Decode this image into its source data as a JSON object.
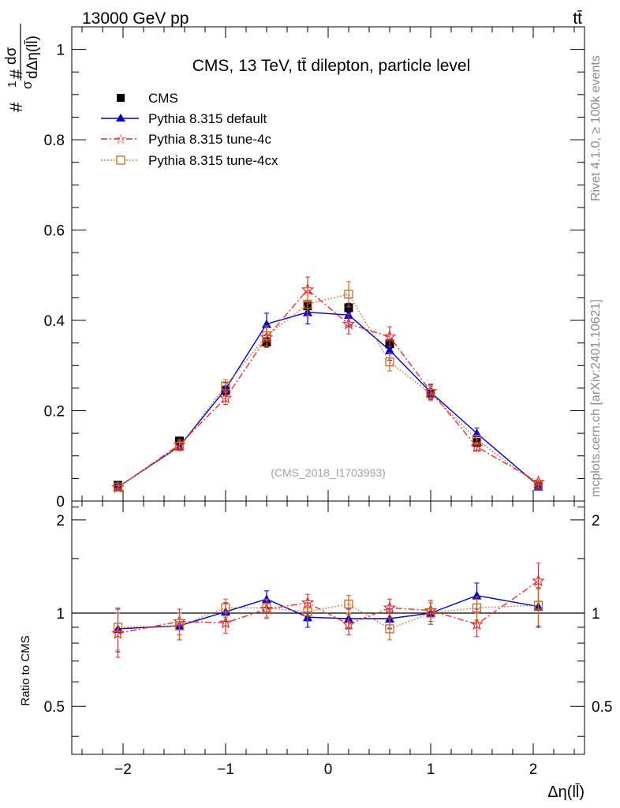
{
  "header": {
    "left": "13000 GeV pp",
    "right": "tt̄"
  },
  "side": {
    "rivet": "Rivet 4.1.0, ≥ 100k events",
    "mcplots": "mcplots.cern.ch [arXiv:2401.10621]"
  },
  "chart_data": [
    {
      "type": "line",
      "panel": "main",
      "title": "CMS, 13 TeV, tt̄ dilepton, particle level",
      "watermark": "(CMS_2018_I1703993)",
      "ylabel_parts": {
        "hash1": "#",
        "one": "1",
        "sigma": "σ",
        "hash2": "#",
        "num": "dσ",
        "den": "dΔη(ll̄)"
      },
      "xlabel": "Δη(ll̄)",
      "xlim": [
        -2.5,
        2.5
      ],
      "ylim": [
        0,
        1.05
      ],
      "yticks": [
        0,
        0.2,
        0.4,
        0.6,
        0.8,
        1
      ],
      "ytick_labels": [
        "0",
        "0.2",
        "0.4",
        "0.6",
        "0.8",
        "1"
      ],
      "x": [
        -2.05,
        -1.45,
        -1.0,
        -0.6,
        -0.2,
        0.2,
        0.6,
        1.0,
        1.45,
        2.05
      ],
      "series": [
        {
          "name": "CMS",
          "style": "data",
          "color": "#000000",
          "values": [
            0.035,
            0.133,
            0.245,
            0.352,
            0.432,
            0.428,
            0.348,
            0.238,
            0.13,
            0.033
          ],
          "errors": [
            0.003,
            0.006,
            0.01,
            0.01,
            0.012,
            0.01,
            0.01,
            0.01,
            0.006,
            0.003
          ]
        },
        {
          "name": "Pythia 8.315 default",
          "style": "triangle",
          "color": "#0000cc",
          "values": [
            0.031,
            0.121,
            0.248,
            0.392,
            0.418,
            0.412,
            0.334,
            0.241,
            0.15,
            0.034
          ],
          "errors": [
            0.004,
            0.01,
            0.014,
            0.024,
            0.026,
            0.024,
            0.022,
            0.016,
            0.012,
            0.005
          ]
        },
        {
          "name": "Pythia 8.315 tune-4c",
          "style": "star",
          "color": "#dd3333",
          "values": [
            0.03,
            0.125,
            0.228,
            0.362,
            0.468,
            0.392,
            0.364,
            0.243,
            0.12,
            0.042
          ],
          "errors": [
            0.004,
            0.01,
            0.014,
            0.022,
            0.028,
            0.022,
            0.022,
            0.016,
            0.01,
            0.005
          ]
        },
        {
          "name": "Pythia 8.315 tune-4cx",
          "style": "open-square",
          "color": "#cc6622",
          "values": [
            0.031,
            0.121,
            0.255,
            0.366,
            0.436,
            0.458,
            0.308,
            0.238,
            0.136,
            0.035
          ],
          "errors": [
            0.004,
            0.01,
            0.014,
            0.022,
            0.026,
            0.028,
            0.02,
            0.016,
            0.01,
            0.005
          ]
        }
      ]
    },
    {
      "type": "line",
      "panel": "ratio",
      "ylabel": "Ratio to CMS",
      "xlim": [
        -2.5,
        2.5
      ],
      "ylim": [
        0.35,
        2.3
      ],
      "yscale": "log",
      "yticks": [
        0.5,
        1,
        2
      ],
      "ytick_labels": [
        "0.5",
        "1",
        "2"
      ],
      "xticks": [
        -2,
        -1,
        0,
        1,
        2
      ],
      "xtick_labels": [
        "−2",
        "−1",
        "0",
        "1",
        "2"
      ],
      "x": [
        -2.05,
        -1.45,
        -1.0,
        -0.6,
        -0.2,
        0.2,
        0.6,
        1.0,
        1.45,
        2.05
      ],
      "series": [
        {
          "name": "Pythia 8.315 default",
          "style": "triangle",
          "color": "#0000cc",
          "values": [
            0.89,
            0.91,
            1.01,
            1.11,
            0.97,
            0.96,
            0.96,
            1.0,
            1.14,
            1.05
          ],
          "errors": [
            0.14,
            0.09,
            0.07,
            0.07,
            0.07,
            0.07,
            0.07,
            0.08,
            0.11,
            0.15
          ]
        },
        {
          "name": "Pythia 8.315 tune-4c",
          "style": "star",
          "color": "#dd3333",
          "values": [
            0.86,
            0.94,
            0.93,
            1.03,
            1.08,
            0.92,
            1.04,
            1.02,
            0.92,
            1.27
          ],
          "errors": [
            0.14,
            0.09,
            0.07,
            0.07,
            0.07,
            0.07,
            0.07,
            0.08,
            0.08,
            0.18
          ]
        },
        {
          "name": "Pythia 8.315 tune-4cx",
          "style": "open-square",
          "color": "#cc6622",
          "values": [
            0.9,
            0.91,
            1.04,
            1.04,
            1.01,
            1.07,
            0.89,
            1.0,
            1.04,
            1.06
          ],
          "errors": [
            0.14,
            0.09,
            0.07,
            0.07,
            0.07,
            0.07,
            0.07,
            0.08,
            0.09,
            0.15
          ]
        }
      ]
    }
  ]
}
